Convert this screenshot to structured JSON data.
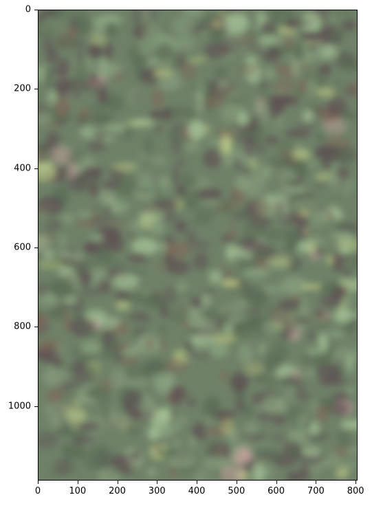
{
  "image": {
    "description_colors": {
      "base": "#6f8268",
      "dark_mauve": "#5d4f52",
      "light_green": "#a9c79a",
      "yellow_green": "#c9d48a",
      "pink": "#d8a8a8"
    }
  },
  "axes": {
    "x_ticks": [
      {
        "label": "0",
        "value": 0
      },
      {
        "label": "100",
        "value": 100
      },
      {
        "label": "200",
        "value": 200
      },
      {
        "label": "300",
        "value": 300
      },
      {
        "label": "400",
        "value": 400
      },
      {
        "label": "500",
        "value": 500
      },
      {
        "label": "600",
        "value": 600
      },
      {
        "label": "700",
        "value": 700
      },
      {
        "label": "800",
        "value": 800
      }
    ],
    "y_ticks": [
      {
        "label": "0",
        "value": 0
      },
      {
        "label": "200",
        "value": 200
      },
      {
        "label": "400",
        "value": 400
      },
      {
        "label": "600",
        "value": 600
      },
      {
        "label": "800",
        "value": 800
      },
      {
        "label": "1000",
        "value": 1000
      }
    ],
    "x_range": [
      0,
      805
    ],
    "y_range": [
      0,
      1188
    ]
  }
}
